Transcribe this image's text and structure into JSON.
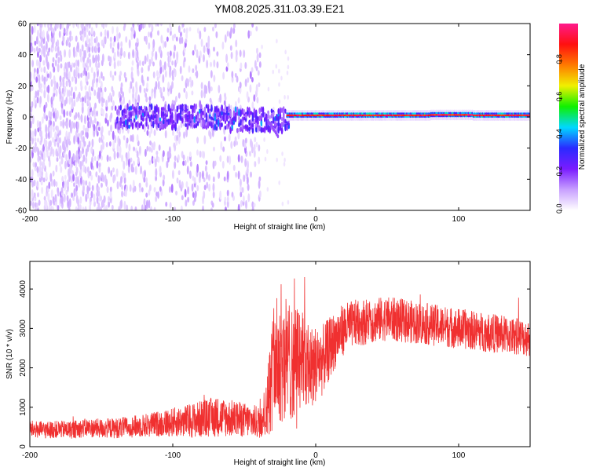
{
  "figure": {
    "title": "YM08.2025.311.03.39.E21"
  },
  "chart_data": [
    {
      "type": "heatmap",
      "xlabel": "Height of straight line (km)",
      "ylabel": "Frequency (Hz)",
      "xlim": [
        -200,
        150
      ],
      "ylim": [
        -60,
        60
      ],
      "xticks": [
        -200,
        -100,
        0,
        100
      ],
      "yticks": [
        -60,
        -40,
        -20,
        0,
        20,
        40,
        60
      ],
      "colorbar": {
        "label": "Normalized spectral amplitude",
        "range": [
          0.0,
          1.0
        ],
        "ticks": [
          0.0,
          0.2,
          0.4,
          0.6,
          0.8
        ],
        "tick_labels": [
          "0.0",
          "0.2",
          "0.4",
          "0.6",
          "0.8"
        ],
        "colormap": "white-violet-blue-cyan-green-yellow-red-magenta",
        "stops": [
          "#ffffff",
          "#c8a0ff",
          "#7a1cff",
          "#2a2aff",
          "#00d8ff",
          "#10f000",
          "#f0f000",
          "#ff7a00",
          "#ff1010",
          "#ff1a8c"
        ]
      },
      "bands": [
        {
          "x_start": -200,
          "x_end": -40,
          "description_level": 0.1,
          "center_hz": 0,
          "spread_hz": 60
        },
        {
          "x_start": -140,
          "x_end": -20,
          "description_level": 0.3,
          "center_hz": 0,
          "spread_hz": 10
        },
        {
          "x_start": -20,
          "x_end": 150,
          "description_level": 0.9,
          "center_hz": 1,
          "spread_hz": 2
        }
      ],
      "grid": false
    },
    {
      "type": "line",
      "xlabel": "Height of straight line (km)",
      "ylabel": "SNR (10 * v/v)",
      "xlim": [
        -200,
        150
      ],
      "ylim": [
        0,
        4700
      ],
      "xticks": [
        -200,
        -100,
        0,
        100
      ],
      "yticks": [
        0,
        1000,
        2000,
        3000,
        4000
      ],
      "color": "#f03030",
      "grid": false,
      "series": [
        {
          "x": [
            -200,
            -190,
            -180,
            -170,
            -160,
            -150,
            -140,
            -130,
            -120,
            -110,
            -100,
            -90,
            -80,
            -70,
            -60,
            -50,
            -40,
            -35,
            -30,
            -25,
            -20,
            -15,
            -10,
            -5,
            0,
            5,
            10,
            15,
            20,
            25,
            30,
            40,
            50,
            60,
            70,
            80,
            90,
            100,
            110,
            120,
            130,
            140,
            150
          ],
          "y": [
            450,
            420,
            440,
            430,
            480,
            460,
            470,
            500,
            540,
            580,
            620,
            650,
            700,
            760,
            720,
            680,
            620,
            900,
            1900,
            2400,
            2200,
            2100,
            2300,
            2000,
            2100,
            2200,
            2500,
            2800,
            3000,
            3100,
            3150,
            3200,
            3250,
            3200,
            3150,
            3100,
            3050,
            3000,
            2950,
            2900,
            2850,
            2800,
            2750
          ],
          "noise": [
            220,
            220,
            220,
            230,
            240,
            250,
            260,
            270,
            300,
            330,
            370,
            420,
            480,
            520,
            480,
            440,
            420,
            700,
            1500,
            1800,
            1600,
            1400,
            1300,
            1100,
            1000,
            900,
            800,
            700,
            650,
            600,
            600,
            580,
            560,
            560,
            540,
            530,
            520,
            520,
            500,
            500,
            490,
            480,
            470
          ]
        }
      ]
    }
  ]
}
